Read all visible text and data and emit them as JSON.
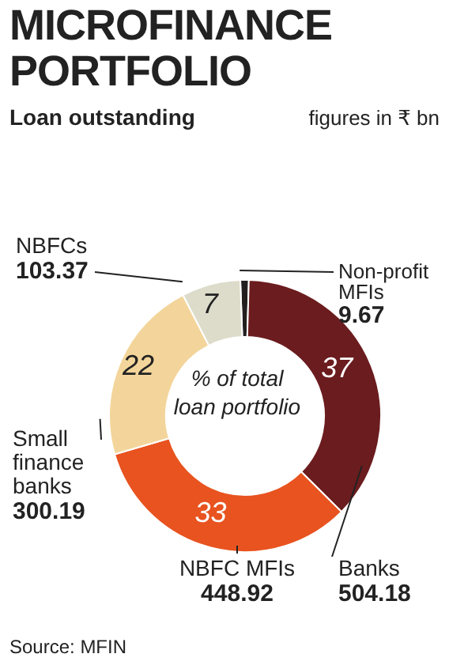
{
  "chart_data": {
    "type": "donut",
    "title": "MICROFINANCE PORTFOLIO",
    "subtitle": "Loan outstanding",
    "annotations": [
      "figures in ₹ bn",
      "% of total loan portfolio",
      "Source: MFIN",
      {
        "text": "9.67",
        "x": "Non-profit MFIs"
      },
      {
        "text": "504.18",
        "x": "Banks"
      },
      {
        "text": "448.92",
        "x": "NBFC MFIs"
      },
      {
        "text": "300.19",
        "x": "Small finance banks"
      },
      {
        "text": "103.37",
        "x": "NBFCs"
      }
    ],
    "categories": [
      "Non-profit MFIs",
      "Banks",
      "NBFC MFIs",
      "Small finance banks",
      "NBFCs"
    ],
    "values": [
      1,
      37,
      33,
      22,
      7
    ],
    "colors": [
      "#231f20",
      "#6b1c1e",
      "#e8531f",
      "#f3d59b",
      "#dddccb"
    ],
    "value_labels": [
      null,
      "37",
      "33",
      "22",
      "7"
    ]
  }
}
